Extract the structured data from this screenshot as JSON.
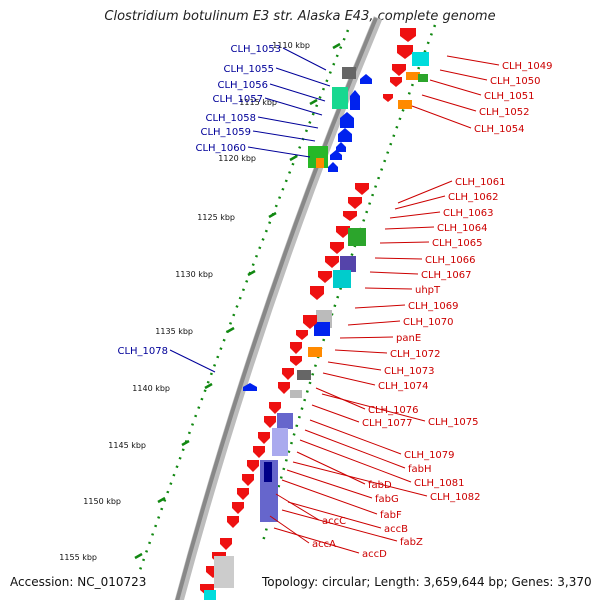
{
  "title": "Clostridium botulinum E3 str. Alaska E43, complete genome",
  "accession_text": "Accession: NC_010723",
  "summary_text": "Topology: circular; Length: 3,659,644 bp; Genes: 3,370",
  "colors": {
    "forward_gene": "#ee1111",
    "reverse_gene": "#0022ee",
    "forward_label": "#cc0000",
    "reverse_label": "#000099",
    "backbone": "#888888",
    "ticks": "#118811"
  },
  "kbp_ticks": [
    "1110 kbp",
    "1115 kbp",
    "1120 kbp",
    "1125 kbp",
    "1130 kbp",
    "1135 kbp",
    "1140 kbp",
    "1145 kbp",
    "1150 kbp",
    "1155 kbp"
  ],
  "reverse_labels": [
    "CLH_1053",
    "CLH_1055",
    "CLH_1056",
    "CLH_1057",
    "CLH_1058",
    "CLH_1059",
    "CLH_1060",
    "CLH_1078"
  ],
  "forward_labels": [
    "CLH_1049",
    "CLH_1050",
    "CLH_1051",
    "CLH_1052",
    "CLH_1054",
    "CLH_1061",
    "CLH_1062",
    "CLH_1063",
    "CLH_1064",
    "CLH_1065",
    "CLH_1066",
    "CLH_1067",
    "uhpT",
    "CLH_1069",
    "CLH_1070",
    "panE",
    "CLH_1072",
    "CLH_1073",
    "CLH_1074",
    "CLH_1076",
    "CLH_1075",
    "CLH_1077",
    "CLH_1079",
    "fabH",
    "CLH_1081",
    "fabD",
    "CLH_1082",
    "fabG",
    "fabF",
    "accC",
    "accB",
    "fabZ",
    "accA",
    "accD"
  ]
}
